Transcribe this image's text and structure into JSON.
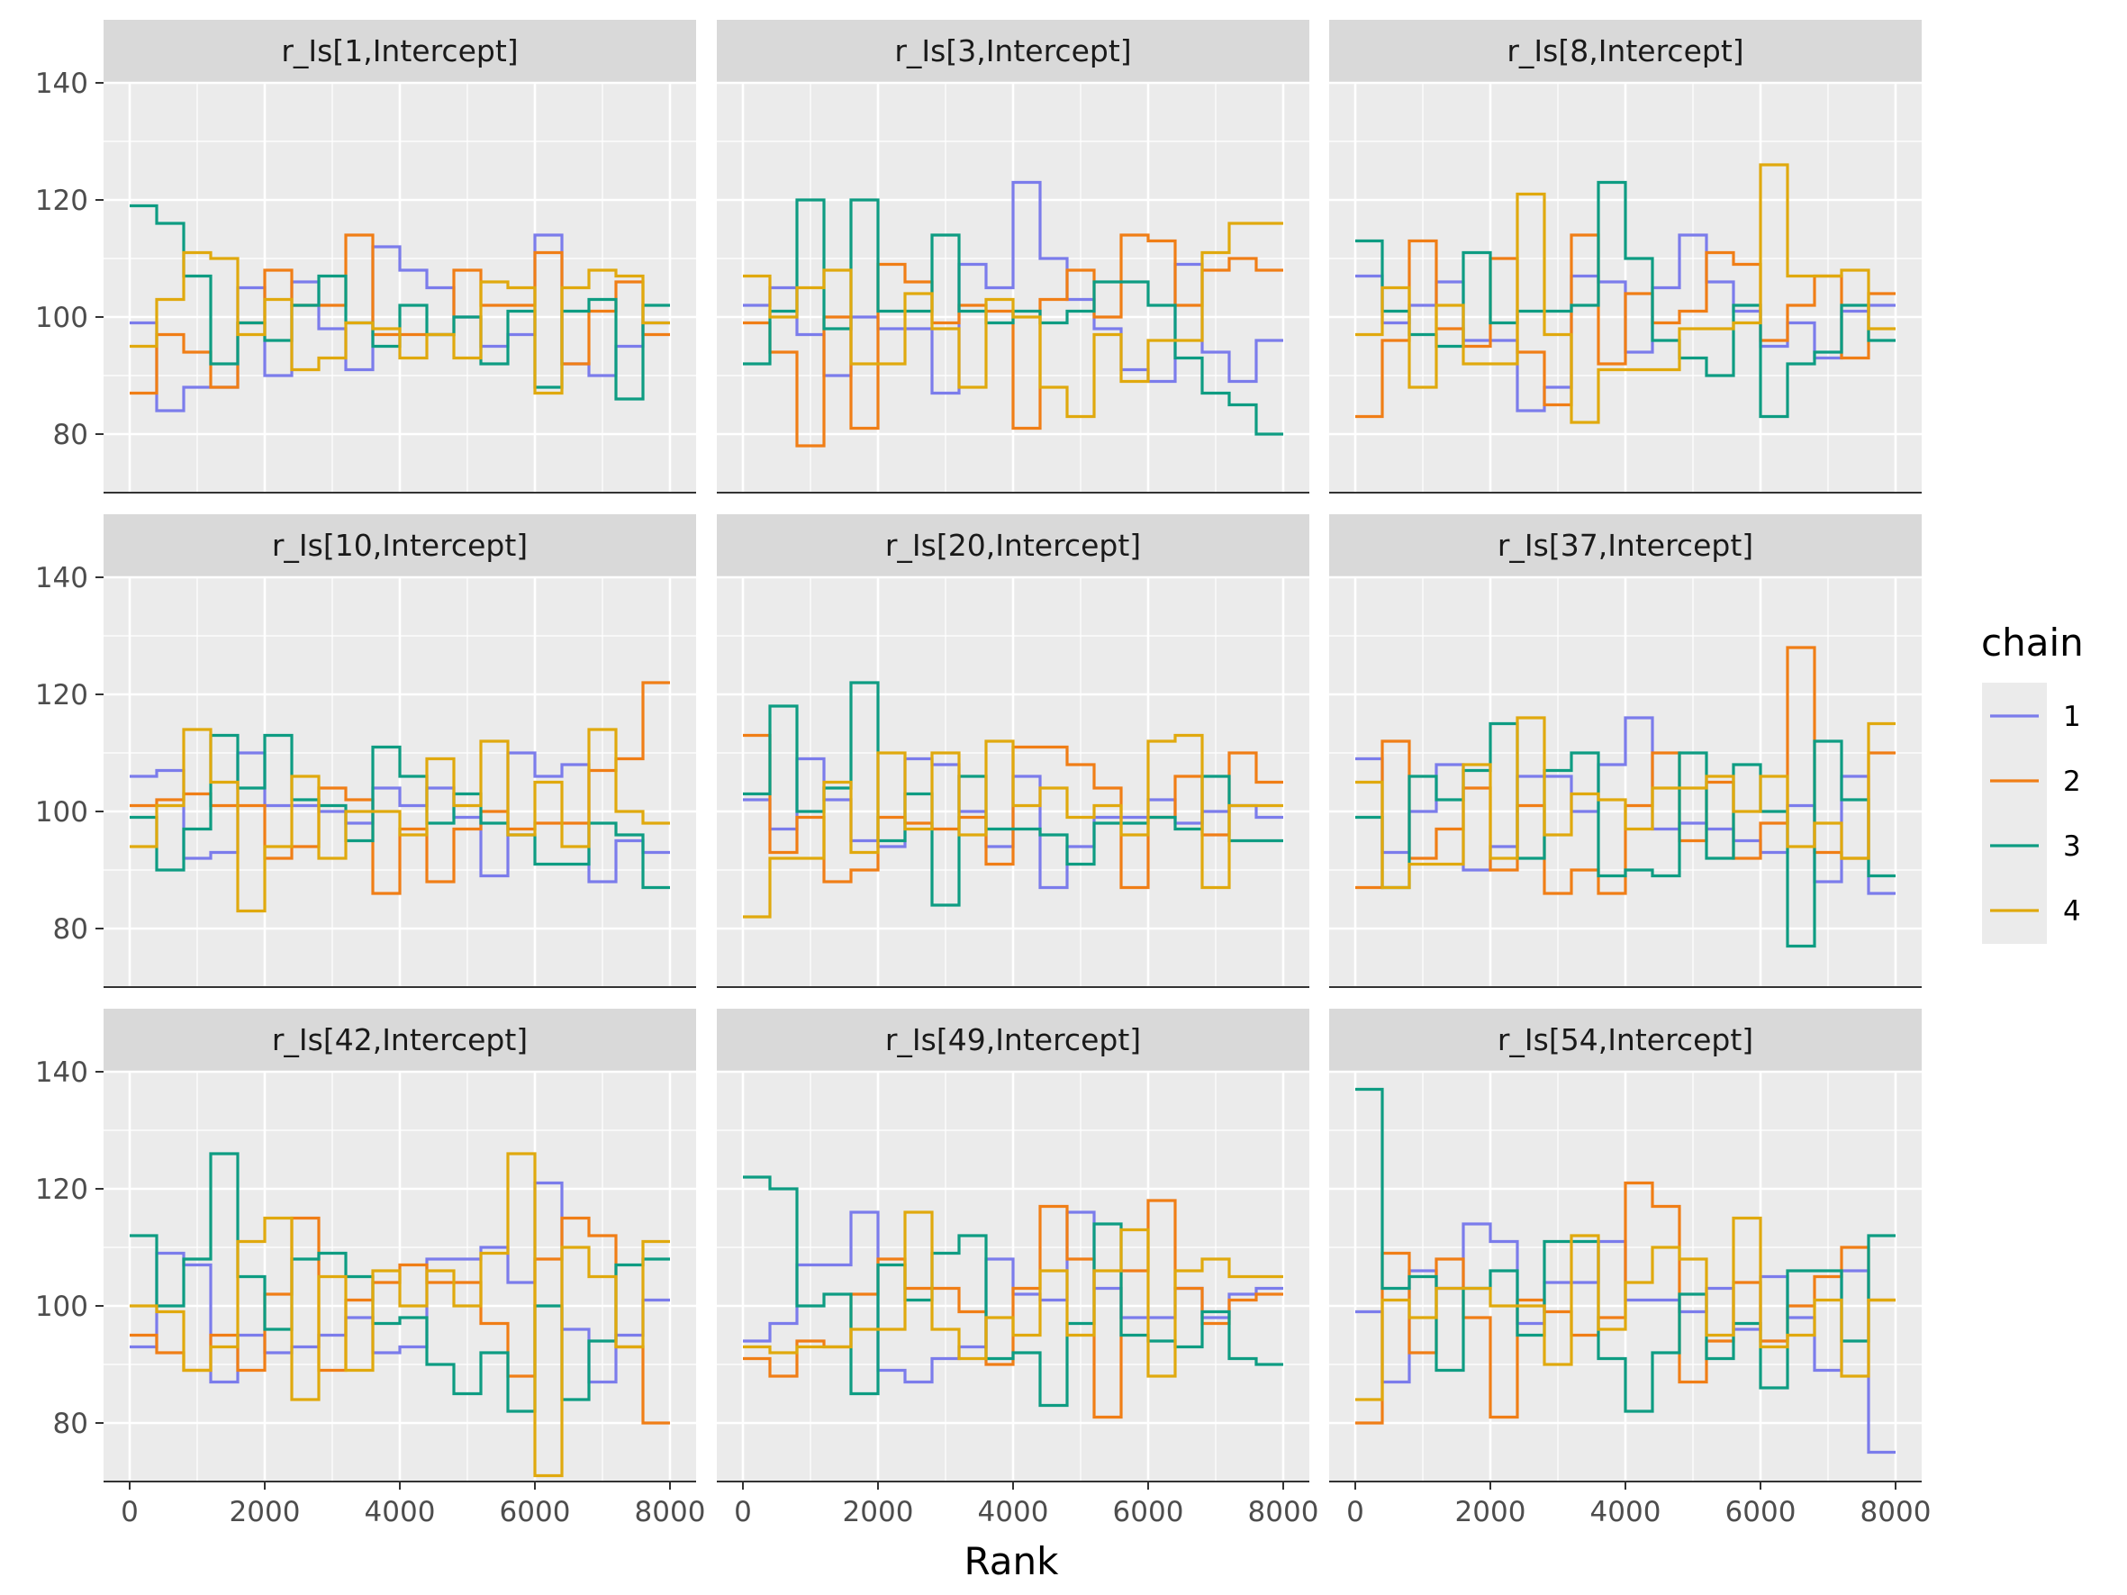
{
  "chart_data": {
    "type": "line",
    "subtype": "rank-histogram-step",
    "x_title": "Rank",
    "y_title": "",
    "xlim": [
      0,
      8000
    ],
    "ylim": [
      70,
      140
    ],
    "x_ticks": [
      0,
      2000,
      4000,
      6000,
      8000
    ],
    "x_tick_labels": [
      "0",
      "2000",
      "4000",
      "6000",
      "8000"
    ],
    "y_ticks": [
      80,
      100,
      120,
      140
    ],
    "y_tick_labels": [
      "80",
      "100",
      "120",
      "140"
    ],
    "bin_edges": [
      0,
      400,
      800,
      1200,
      1600,
      2000,
      2400,
      2800,
      3200,
      3600,
      4000,
      4400,
      4800,
      5200,
      5600,
      6000,
      6400,
      6800,
      7200,
      7600,
      8000
    ],
    "grid": true,
    "legend": {
      "title": "chain",
      "position": "right",
      "entries": [
        "1",
        "2",
        "3",
        "4"
      ]
    },
    "series_colors": [
      "#7B7CEB",
      "#F07E16",
      "#0E9C82",
      "#E0A90E"
    ],
    "panels": [
      {
        "title": "r_Is[1,Intercept]",
        "series": [
          {
            "name": "1",
            "values": [
              99,
              84,
              88,
              88,
              105,
              90,
              106,
              98,
              91,
              112,
              108,
              105,
              100,
              95,
              97,
              114,
              92,
              90,
              95,
              99
            ]
          },
          {
            "name": "2",
            "values": [
              87,
              97,
              94,
              88,
              99,
              108,
              102,
              102,
              114,
              97,
              97,
              97,
              108,
              102,
              102,
              111,
              92,
              101,
              106,
              97
            ]
          },
          {
            "name": "3",
            "values": [
              119,
              116,
              107,
              92,
              99,
              96,
              102,
              107,
              99,
              95,
              102,
              97,
              100,
              92,
              101,
              88,
              101,
              103,
              86,
              102
            ]
          },
          {
            "name": "4",
            "values": [
              95,
              103,
              111,
              110,
              97,
              103,
              91,
              93,
              99,
              98,
              93,
              97,
              93,
              106,
              105,
              87,
              105,
              108,
              107,
              99
            ]
          }
        ]
      },
      {
        "title": "r_Is[3,Intercept]",
        "series": [
          {
            "name": "1",
            "values": [
              102,
              105,
              97,
              90,
              100,
              98,
              98,
              87,
              109,
              105,
              123,
              110,
              103,
              98,
              91,
              89,
              109,
              94,
              89,
              96
            ]
          },
          {
            "name": "2",
            "values": [
              99,
              94,
              78,
              100,
              81,
              109,
              106,
              99,
              102,
              101,
              81,
              103,
              108,
              100,
              114,
              113,
              102,
              108,
              110,
              108
            ]
          },
          {
            "name": "3",
            "values": [
              92,
              101,
              120,
              98,
              120,
              101,
              101,
              114,
              101,
              99,
              101,
              99,
              101,
              106,
              106,
              102,
              93,
              87,
              85,
              80
            ]
          },
          {
            "name": "4",
            "values": [
              107,
              100,
              105,
              108,
              92,
              92,
              104,
              98,
              88,
              103,
              100,
              88,
              83,
              97,
              89,
              96,
              96,
              111,
              116,
              116
            ]
          }
        ]
      },
      {
        "title": "r_Is[8,Intercept]",
        "series": [
          {
            "name": "1",
            "values": [
              107,
              99,
              102,
              106,
              96,
              96,
              84,
              88,
              107,
              106,
              94,
              105,
              114,
              106,
              101,
              95,
              99,
              93,
              101,
              102
            ]
          },
          {
            "name": "2",
            "values": [
              83,
              96,
              113,
              98,
              95,
              110,
              94,
              85,
              114,
              92,
              104,
              99,
              101,
              111,
              109,
              96,
              102,
              107,
              93,
              104
            ]
          },
          {
            "name": "3",
            "values": [
              113,
              101,
              97,
              95,
              111,
              99,
              101,
              101,
              102,
              123,
              110,
              96,
              93,
              90,
              102,
              83,
              92,
              94,
              102,
              96
            ]
          },
          {
            "name": "4",
            "values": [
              97,
              105,
              88,
              102,
              92,
              92,
              121,
              97,
              82,
              91,
              91,
              91,
              98,
              98,
              99,
              126,
              107,
              107,
              108,
              98
            ]
          }
        ]
      },
      {
        "title": "r_Is[10,Intercept]",
        "series": [
          {
            "name": "1",
            "values": [
              106,
              107,
              92,
              93,
              110,
              101,
              101,
              100,
              98,
              104,
              101,
              104,
              99,
              89,
              110,
              106,
              108,
              88,
              95,
              93
            ]
          },
          {
            "name": "2",
            "values": [
              101,
              102,
              103,
              101,
              101,
              92,
              94,
              104,
              102,
              86,
              97,
              88,
              97,
              100,
              97,
              98,
              98,
              107,
              109,
              122
            ]
          },
          {
            "name": "3",
            "values": [
              99,
              90,
              97,
              113,
              104,
              113,
              102,
              101,
              95,
              111,
              106,
              98,
              103,
              98,
              96,
              91,
              91,
              98,
              96,
              87
            ]
          },
          {
            "name": "4",
            "values": [
              94,
              101,
              114,
              105,
              83,
              94,
              106,
              92,
              100,
              100,
              96,
              109,
              101,
              112,
              96,
              105,
              94,
              114,
              100,
              98
            ]
          }
        ]
      },
      {
        "title": "r_Is[20,Intercept]",
        "series": [
          {
            "name": "1",
            "values": [
              102,
              97,
              109,
              102,
              95,
              94,
              109,
              108,
              100,
              94,
              106,
              87,
              94,
              99,
              99,
              102,
              98,
              100,
              101,
              99
            ]
          },
          {
            "name": "2",
            "values": [
              113,
              93,
              99,
              88,
              90,
              99,
              98,
              97,
              99,
              91,
              111,
              111,
              108,
              104,
              87,
              99,
              106,
              96,
              110,
              105
            ]
          },
          {
            "name": "3",
            "values": [
              103,
              118,
              100,
              104,
              122,
              95,
              103,
              84,
              106,
              97,
              97,
              96,
              91,
              98,
              98,
              99,
              97,
              106,
              95,
              95
            ]
          },
          {
            "name": "4",
            "values": [
              82,
              92,
              92,
              105,
              93,
              110,
              97,
              110,
              96,
              112,
              101,
              104,
              99,
              101,
              96,
              112,
              113,
              87,
              101,
              101
            ]
          }
        ]
      },
      {
        "title": "r_Is[37,Intercept]",
        "series": [
          {
            "name": "1",
            "values": [
              109,
              93,
              100,
              108,
              90,
              94,
              106,
              106,
              100,
              108,
              116,
              97,
              98,
              97,
              95,
              93,
              101,
              88,
              106,
              86
            ]
          },
          {
            "name": "2",
            "values": [
              87,
              112,
              92,
              97,
              104,
              90,
              101,
              86,
              90,
              86,
              101,
              110,
              95,
              105,
              92,
              98,
              128,
              93,
              92,
              110
            ]
          },
          {
            "name": "3",
            "values": [
              99,
              87,
              106,
              102,
              107,
              115,
              92,
              107,
              110,
              89,
              90,
              89,
              110,
              92,
              108,
              100,
              77,
              112,
              102,
              89
            ]
          },
          {
            "name": "4",
            "values": [
              105,
              87,
              91,
              91,
              108,
              92,
              116,
              96,
              103,
              102,
              97,
              104,
              104,
              106,
              100,
              106,
              94,
              98,
              92,
              115
            ]
          }
        ]
      },
      {
        "title": "r_Is[42,Intercept]",
        "series": [
          {
            "name": "1",
            "values": [
              93,
              109,
              107,
              87,
              95,
              92,
              93,
              95,
              98,
              92,
              93,
              108,
              108,
              110,
              104,
              121,
              96,
              87,
              95,
              101
            ]
          },
          {
            "name": "2",
            "values": [
              95,
              92,
              89,
              95,
              89,
              102,
              115,
              89,
              101,
              104,
              107,
              104,
              104,
              97,
              88,
              108,
              115,
              112,
              93,
              80
            ]
          },
          {
            "name": "3",
            "values": [
              112,
              100,
              108,
              126,
              105,
              96,
              108,
              109,
              105,
              97,
              98,
              90,
              85,
              92,
              82,
              100,
              84,
              94,
              107,
              108
            ]
          },
          {
            "name": "4",
            "values": [
              100,
              99,
              89,
              93,
              111,
              115,
              84,
              105,
              89,
              106,
              100,
              106,
              100,
              109,
              126,
              71,
              110,
              105,
              93,
              111
            ]
          }
        ]
      },
      {
        "title": "r_Is[49,Intercept]",
        "series": [
          {
            "name": "1",
            "values": [
              94,
              97,
              107,
              107,
              116,
              89,
              87,
              91,
              93,
              108,
              102,
              101,
              116,
              103,
              98,
              98,
              103,
              98,
              102,
              103
            ]
          },
          {
            "name": "2",
            "values": [
              91,
              88,
              94,
              93,
              102,
              108,
              103,
              103,
              99,
              90,
              103,
              117,
              108,
              81,
              106,
              118,
              103,
              97,
              101,
              102
            ]
          },
          {
            "name": "3",
            "values": [
              122,
              120,
              100,
              102,
              85,
              107,
              101,
              109,
              112,
              91,
              92,
              83,
              97,
              114,
              95,
              94,
              93,
              99,
              91,
              90
            ]
          },
          {
            "name": "4",
            "values": [
              93,
              92,
              93,
              93,
              96,
              96,
              116,
              96,
              91,
              98,
              95,
              106,
              95,
              106,
              113,
              88,
              106,
              108,
              105,
              105
            ]
          }
        ]
      },
      {
        "title": "r_Is[54,Intercept]",
        "series": [
          {
            "name": "1",
            "values": [
              99,
              87,
              106,
              103,
              114,
              111,
              97,
              104,
              104,
              111,
              101,
              101,
              99,
              103,
              96,
              105,
              98,
              89,
              106,
              75
            ]
          },
          {
            "name": "2",
            "values": [
              80,
              109,
              92,
              108,
              98,
              81,
              101,
              99,
              95,
              98,
              121,
              117,
              87,
              94,
              104,
              94,
              100,
              105,
              110,
              101
            ]
          },
          {
            "name": "3",
            "values": [
              137,
              103,
              105,
              89,
              103,
              106,
              95,
              111,
              111,
              91,
              82,
              92,
              102,
              91,
              97,
              86,
              106,
              106,
              94,
              112
            ]
          },
          {
            "name": "4",
            "values": [
              84,
              101,
              98,
              103,
              103,
              100,
              100,
              90,
              112,
              96,
              104,
              110,
              108,
              95,
              115,
              93,
              95,
              101,
              88,
              101
            ]
          }
        ]
      }
    ]
  }
}
